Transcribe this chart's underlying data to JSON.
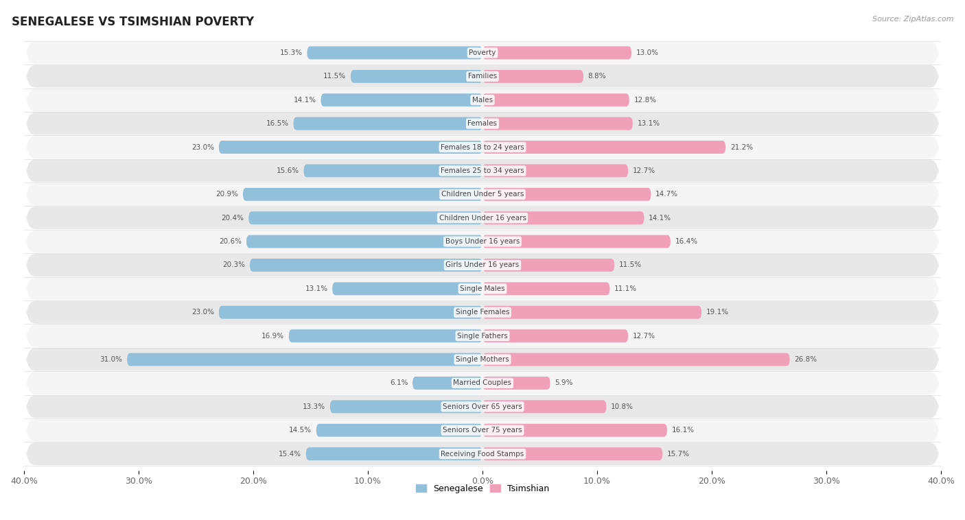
{
  "title": "SENEGALESE VS TSIMSHIAN POVERTY",
  "source": "Source: ZipAtlas.com",
  "categories": [
    "Poverty",
    "Families",
    "Males",
    "Females",
    "Females 18 to 24 years",
    "Females 25 to 34 years",
    "Children Under 5 years",
    "Children Under 16 years",
    "Boys Under 16 years",
    "Girls Under 16 years",
    "Single Males",
    "Single Females",
    "Single Fathers",
    "Single Mothers",
    "Married Couples",
    "Seniors Over 65 years",
    "Seniors Over 75 years",
    "Receiving Food Stamps"
  ],
  "senegalese": [
    15.3,
    11.5,
    14.1,
    16.5,
    23.0,
    15.6,
    20.9,
    20.4,
    20.6,
    20.3,
    13.1,
    23.0,
    16.9,
    31.0,
    6.1,
    13.3,
    14.5,
    15.4
  ],
  "tsimshian": [
    13.0,
    8.8,
    12.8,
    13.1,
    21.2,
    12.7,
    14.7,
    14.1,
    16.4,
    11.5,
    11.1,
    19.1,
    12.7,
    26.8,
    5.9,
    10.8,
    16.1,
    15.7
  ],
  "senegalese_color": "#92BFD9",
  "tsimshian_color": "#F0A0B8",
  "bg_color": "#ffffff",
  "row_light": "#f5f5f5",
  "row_dark": "#e8e8e8",
  "xlim": 40.0,
  "bar_height": 0.55,
  "legend_labels": [
    "Senegalese",
    "Tsimshian"
  ]
}
